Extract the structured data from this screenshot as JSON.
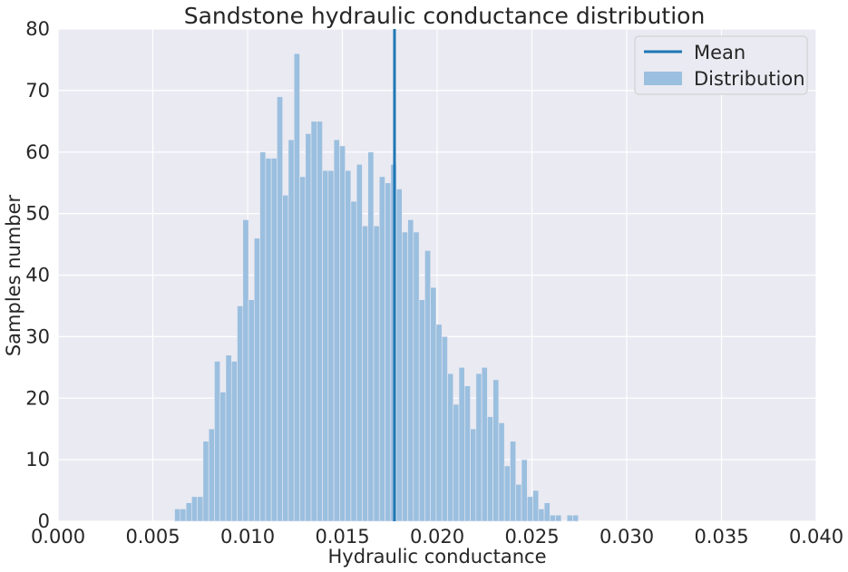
{
  "chart_data": {
    "type": "histogram",
    "title": "Sandstone hydraulic conductance distribution",
    "xlabel": "Hydraulic conductance",
    "ylabel": "Samples number",
    "xlim": [
      0.0,
      0.04
    ],
    "ylim": [
      0,
      80
    ],
    "xticks": [
      "0.000",
      "0.005",
      "0.010",
      "0.015",
      "0.020",
      "0.025",
      "0.030",
      "0.035",
      "0.040"
    ],
    "yticks": [
      "0",
      "10",
      "20",
      "30",
      "40",
      "50",
      "60",
      "70",
      "80"
    ],
    "grid": true,
    "legend_position": "top-right",
    "bin_start": 0.00615,
    "bin_width": 0.0003,
    "counts": [
      2,
      2,
      3,
      4,
      4,
      13,
      15,
      26,
      21,
      27,
      26,
      35,
      49,
      36,
      46,
      60,
      59,
      59,
      69,
      53,
      62,
      76,
      56,
      63,
      65,
      65,
      57,
      57,
      62,
      61,
      57,
      52,
      58,
      48,
      60,
      48,
      56,
      55,
      58,
      54,
      47,
      49,
      47,
      36,
      44,
      38,
      32,
      30,
      24,
      19,
      25,
      22,
      15,
      24,
      25,
      17,
      23,
      16,
      9,
      13,
      6,
      10,
      4,
      5,
      2,
      3,
      1,
      1,
      0,
      1,
      1
    ],
    "mean": 0.01775,
    "series": [
      {
        "name": "Mean",
        "kind": "vline",
        "color": "#1f77b4"
      },
      {
        "name": "Distribution",
        "kind": "bars",
        "color": "#9bbfdf"
      }
    ]
  }
}
